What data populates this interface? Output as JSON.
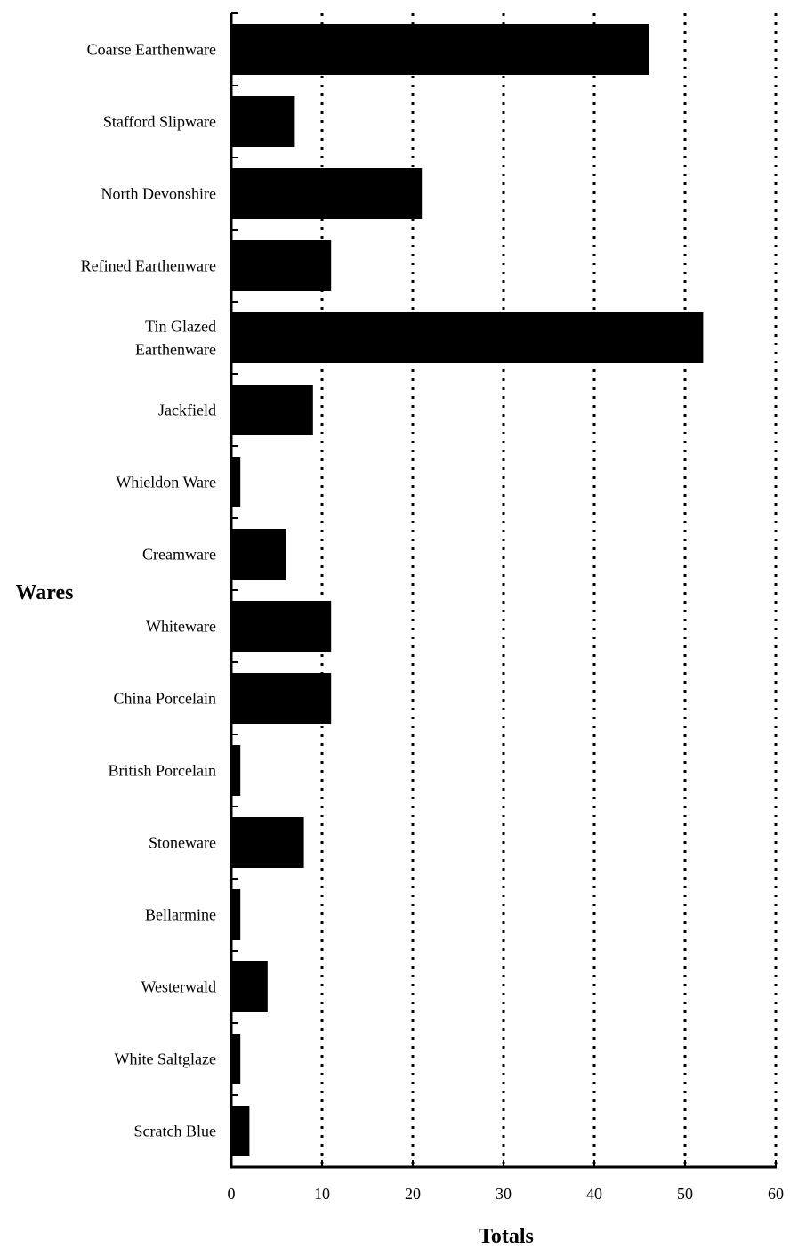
{
  "chart_data": {
    "type": "bar",
    "orientation": "horizontal",
    "categories": [
      [
        "Coarse Earthenware"
      ],
      [
        "Stafford Slipware"
      ],
      [
        "North Devonshire"
      ],
      [
        "Refined Earthenware"
      ],
      [
        "Tin Glazed",
        "Earthenware"
      ],
      [
        "Jackfield"
      ],
      [
        "Whieldon Ware"
      ],
      [
        "Creamware"
      ],
      [
        "Whiteware"
      ],
      [
        "China Porcelain"
      ],
      [
        "British Porcelain"
      ],
      [
        "Stoneware"
      ],
      [
        "Bellarmine"
      ],
      [
        "Westerwald"
      ],
      [
        "White Saltglaze"
      ],
      [
        "Scratch Blue"
      ]
    ],
    "values": [
      46,
      7,
      21,
      11,
      52,
      9,
      1,
      6,
      11,
      11,
      1,
      8,
      1,
      4,
      1,
      2
    ],
    "xlabel": "Totals",
    "ylabel": "Wares",
    "xlim": [
      0,
      60
    ],
    "xticks": [
      0,
      10,
      20,
      30,
      40,
      50,
      60
    ],
    "grid": "vertical dotted lines",
    "bar_color": "#000000"
  }
}
